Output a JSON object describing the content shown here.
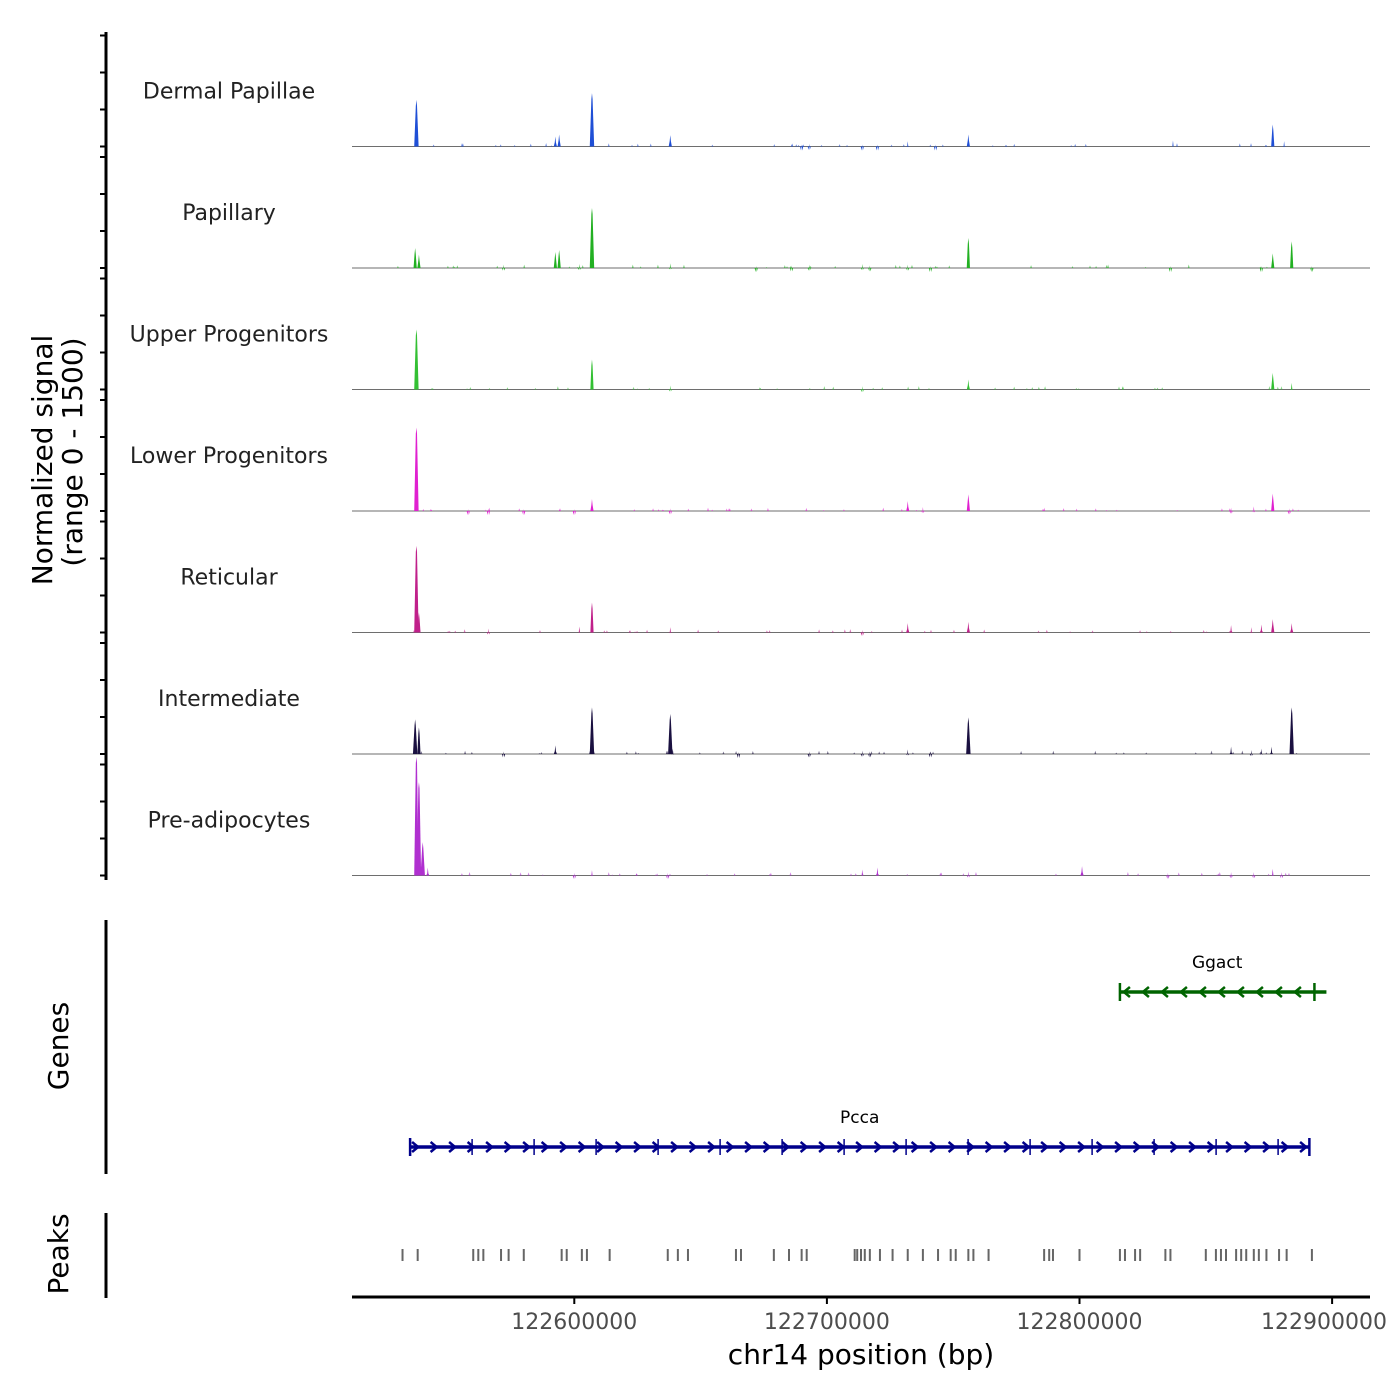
{
  "chart_data": {
    "type": "area",
    "chromosome": "chr14",
    "xlim": [
      122512000,
      122915000
    ],
    "ylim": [
      0,
      1500
    ],
    "ylabel_line1": "Normalized signal",
    "ylabel_line2": "(range 0 - 1500)",
    "xlabel": "chr14 position (bp)",
    "x_ticks": [
      122600000,
      122700000,
      122800000,
      122900000
    ],
    "x_tick_labels": [
      "122600000",
      "122700000",
      "122800000",
      "122900000"
    ],
    "tracks": [
      {
        "name": "Dermal Papillae",
        "color": "#1f4fd6",
        "peaks": [
          [
            122537500,
            700
          ],
          [
            122592500,
            150
          ],
          [
            122594000,
            180
          ],
          [
            122607000,
            800
          ],
          [
            122638000,
            170
          ],
          [
            122690000,
            30
          ],
          [
            122693000,
            40
          ],
          [
            122714000,
            30
          ],
          [
            122720000,
            30
          ],
          [
            122732000,
            80
          ],
          [
            122743000,
            30
          ],
          [
            122756000,
            180
          ],
          [
            122837000,
            90
          ],
          [
            122876500,
            330
          ],
          [
            122881000,
            80
          ]
        ]
      },
      {
        "name": "Papillary",
        "color": "#22b022",
        "peaks": [
          [
            122537000,
            300
          ],
          [
            122538500,
            200
          ],
          [
            122572000,
            50
          ],
          [
            122592500,
            240
          ],
          [
            122594000,
            270
          ],
          [
            122602000,
            60
          ],
          [
            122607000,
            900
          ],
          [
            122638000,
            70
          ],
          [
            122672000,
            30
          ],
          [
            122686000,
            40
          ],
          [
            122693000,
            50
          ],
          [
            122714000,
            60
          ],
          [
            122717000,
            40
          ],
          [
            122732000,
            50
          ],
          [
            122741000,
            30
          ],
          [
            122756000,
            450
          ],
          [
            122836000,
            30
          ],
          [
            122872000,
            30
          ],
          [
            122876500,
            220
          ],
          [
            122884000,
            400
          ],
          [
            122892000,
            30
          ]
        ]
      },
      {
        "name": "Upper Progenitors",
        "color": "#33c033",
        "peaks": [
          [
            122537500,
            900
          ],
          [
            122607000,
            450
          ],
          [
            122638000,
            60
          ],
          [
            122714000,
            50
          ],
          [
            122756000,
            150
          ],
          [
            122876500,
            250
          ],
          [
            122884000,
            100
          ]
        ]
      },
      {
        "name": "Lower Progenitors",
        "color": "#e020d0",
        "peaks": [
          [
            122537500,
            1250
          ],
          [
            122558000,
            30
          ],
          [
            122566000,
            30
          ],
          [
            122580000,
            30
          ],
          [
            122600000,
            30
          ],
          [
            122607000,
            180
          ],
          [
            122638000,
            40
          ],
          [
            122732000,
            150
          ],
          [
            122738000,
            60
          ],
          [
            122756000,
            250
          ],
          [
            122860000,
            50
          ],
          [
            122869000,
            70
          ],
          [
            122876500,
            260
          ],
          [
            122883000,
            40
          ]
        ]
      },
      {
        "name": "Reticular",
        "color": "#c0208a",
        "peaks": [
          [
            122537500,
            1300
          ],
          [
            122538500,
            300
          ],
          [
            122566000,
            60
          ],
          [
            122602000,
            90
          ],
          [
            122607000,
            450
          ],
          [
            122638000,
            80
          ],
          [
            122714000,
            40
          ],
          [
            122732000,
            140
          ],
          [
            122756000,
            160
          ],
          [
            122860000,
            110
          ],
          [
            122868000,
            80
          ],
          [
            122872000,
            120
          ],
          [
            122876500,
            200
          ],
          [
            122884000,
            140
          ]
        ]
      },
      {
        "name": "Intermediate",
        "color": "#1a1040",
        "peaks": [
          [
            122537000,
            520
          ],
          [
            122538500,
            400
          ],
          [
            122572000,
            40
          ],
          [
            122592500,
            130
          ],
          [
            122607000,
            700
          ],
          [
            122638000,
            600
          ],
          [
            122639000,
            80
          ],
          [
            122665000,
            30
          ],
          [
            122693000,
            40
          ],
          [
            122714000,
            50
          ],
          [
            122717000,
            40
          ],
          [
            122732000,
            70
          ],
          [
            122741000,
            40
          ],
          [
            122756000,
            550
          ],
          [
            122860000,
            110
          ],
          [
            122868000,
            60
          ],
          [
            122872000,
            80
          ],
          [
            122876000,
            110
          ],
          [
            122884000,
            700
          ]
        ]
      },
      {
        "name": "Pre-adipocytes",
        "color": "#b030d0",
        "peaks": [
          [
            122537500,
            2200
          ],
          [
            122538500,
            1400
          ],
          [
            122540000,
            500
          ],
          [
            122542000,
            120
          ],
          [
            122600000,
            40
          ],
          [
            122607000,
            80
          ],
          [
            122637000,
            40
          ],
          [
            122714000,
            90
          ],
          [
            122720000,
            120
          ],
          [
            122756000,
            60
          ],
          [
            122801000,
            140
          ],
          [
            122835000,
            40
          ],
          [
            122860000,
            50
          ],
          [
            122869000,
            50
          ],
          [
            122876500,
            100
          ],
          [
            122880000,
            50
          ]
        ]
      }
    ],
    "genes": [
      {
        "name": "Pcca",
        "strand": "+",
        "start": 122535000,
        "end": 122891000,
        "color": "#00008b"
      },
      {
        "name": "Ggact",
        "strand": "-",
        "start": 122816000,
        "end": 122893000,
        "color": "#006400"
      }
    ],
    "peak_regions": [
      122532000,
      122538000,
      122560000,
      122562000,
      122564000,
      122571000,
      122574000,
      122580000,
      122595000,
      122597000,
      122603000,
      122605000,
      122614000,
      122637000,
      122641000,
      122645000,
      122664000,
      122666000,
      122679000,
      122685000,
      122690000,
      122692000,
      122711000,
      122712000,
      122713500,
      122715000,
      122717000,
      122721000,
      122726000,
      122732000,
      122738000,
      122744000,
      122749000,
      122751000,
      122756000,
      122758000,
      122764000,
      122786000,
      122788000,
      122789500,
      122800000,
      122816000,
      122818000,
      122822000,
      122824000,
      122834000,
      122836000,
      122850000,
      122854000,
      122856000,
      122858000,
      122862000,
      122864000,
      122866000,
      122869000,
      122871000,
      122874000,
      122879000,
      122882000,
      122892000
    ],
    "panel_labels": {
      "genes": "Genes",
      "peaks": "Peaks"
    }
  }
}
